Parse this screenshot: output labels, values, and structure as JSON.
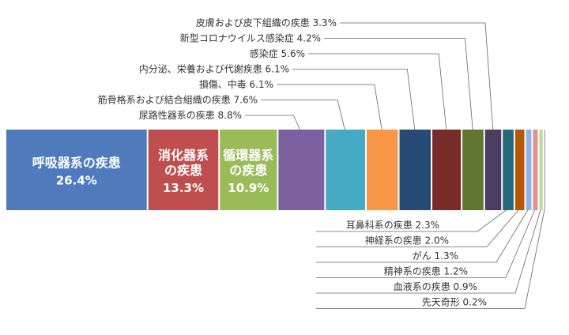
{
  "chart_data": {
    "type": "bar",
    "orientation": "horizontal-stacked-100",
    "unit": "%",
    "segments": [
      {
        "label": "呼吸器系の疾患",
        "value": 26.4,
        "value_text": "26.4%",
        "color": "#4f7bbd",
        "inside_label": [
          "呼吸器系の疾患"
        ],
        "inside_value": "26.4%"
      },
      {
        "label": "消化器系の疾患",
        "value": 13.3,
        "value_text": "13.3%",
        "color": "#bf4e4e",
        "inside_label": [
          "消化器系",
          "の疾患"
        ],
        "inside_value": "13.3%"
      },
      {
        "label": "循環器系の疾患",
        "value": 10.9,
        "value_text": "10.9%",
        "color": "#9bbb59",
        "inside_label": [
          "循環器系",
          "の疾患"
        ],
        "inside_value": "10.9%"
      },
      {
        "label": "尿路性器系の疾患",
        "value": 8.8,
        "value_text": "8.8%",
        "color": "#7d60a0"
      },
      {
        "label": "筋骨格系および結合組織の疾患",
        "value": 7.6,
        "value_text": "7.6%",
        "color": "#46aac4"
      },
      {
        "label": "損傷、中毒",
        "value": 6.1,
        "value_text": "6.1%",
        "color": "#f79646"
      },
      {
        "label": "内分泌、栄養および代謝疾患",
        "value": 6.1,
        "value_text": "6.1%",
        "color": "#254a73"
      },
      {
        "label": "感染症",
        "value": 5.6,
        "value_text": "5.6%",
        "color": "#772c2a"
      },
      {
        "label": "新型コロナウイルス感染症",
        "value": 4.2,
        "value_text": "4.2%",
        "color": "#5f7530"
      },
      {
        "label": "皮膚および皮下組織の疾患",
        "value": 3.3,
        "value_text": "3.3%",
        "color": "#4d3b62"
      },
      {
        "label": "耳鼻科系の疾患",
        "value": 2.3,
        "value_text": "2.3%",
        "color": "#276a7c"
      },
      {
        "label": "神経系の疾患",
        "value": 2.0,
        "value_text": "2.0%",
        "color": "#b65708"
      },
      {
        "label": "がん",
        "value": 1.3,
        "value_text": "1.3%",
        "color": "#8eb4e3"
      },
      {
        "label": "精神系の疾患",
        "value": 1.2,
        "value_text": "1.2%",
        "color": "#d99694"
      },
      {
        "label": "血液系の疾患",
        "value": 0.9,
        "value_text": "0.9%",
        "color": "#c3d69b"
      },
      {
        "label": "先天奇形",
        "value": 0.2,
        "value_text": "0.2%",
        "color": "#b2a2c7"
      }
    ]
  }
}
